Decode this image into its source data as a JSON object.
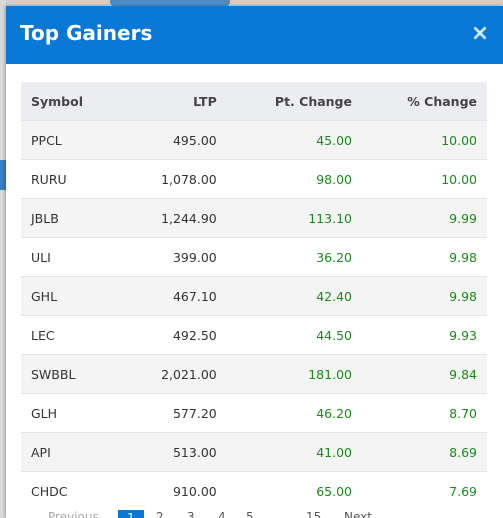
{
  "modal": {
    "title": "Top Gainers",
    "close_symbol": "×"
  },
  "table": {
    "headers": {
      "symbol": "Symbol",
      "ltp": "LTP",
      "pt_change": "Pt. Change",
      "pct_change": "% Change"
    },
    "rows": [
      {
        "symbol": "PPCL",
        "ltp": "495.00",
        "pt_change": "45.00",
        "pct_change": "10.00"
      },
      {
        "symbol": "RURU",
        "ltp": "1,078.00",
        "pt_change": "98.00",
        "pct_change": "10.00"
      },
      {
        "symbol": "JBLB",
        "ltp": "1,244.90",
        "pt_change": "113.10",
        "pct_change": "9.99"
      },
      {
        "symbol": "ULI",
        "ltp": "399.00",
        "pt_change": "36.20",
        "pct_change": "9.98"
      },
      {
        "symbol": "GHL",
        "ltp": "467.10",
        "pt_change": "42.40",
        "pct_change": "9.98"
      },
      {
        "symbol": "LEC",
        "ltp": "492.50",
        "pt_change": "44.50",
        "pct_change": "9.93"
      },
      {
        "symbol": "SWBBL",
        "ltp": "2,021.00",
        "pt_change": "181.00",
        "pct_change": "9.84"
      },
      {
        "symbol": "GLH",
        "ltp": "577.20",
        "pt_change": "46.20",
        "pct_change": "8.70"
      },
      {
        "symbol": "API",
        "ltp": "513.00",
        "pt_change": "41.00",
        "pct_change": "8.69"
      },
      {
        "symbol": "CHDC",
        "ltp": "910.00",
        "pt_change": "65.00",
        "pct_change": "7.69"
      }
    ]
  },
  "pagination": {
    "previous": "Previous",
    "pages": [
      "1",
      "2",
      "3",
      "4",
      "5"
    ],
    "ellipsis": "...",
    "last": "15",
    "next": "Next"
  },
  "colors": {
    "header_bg": "#0a78d7",
    "gain": "#1a8a1a",
    "active_page": "#0a78d7"
  }
}
